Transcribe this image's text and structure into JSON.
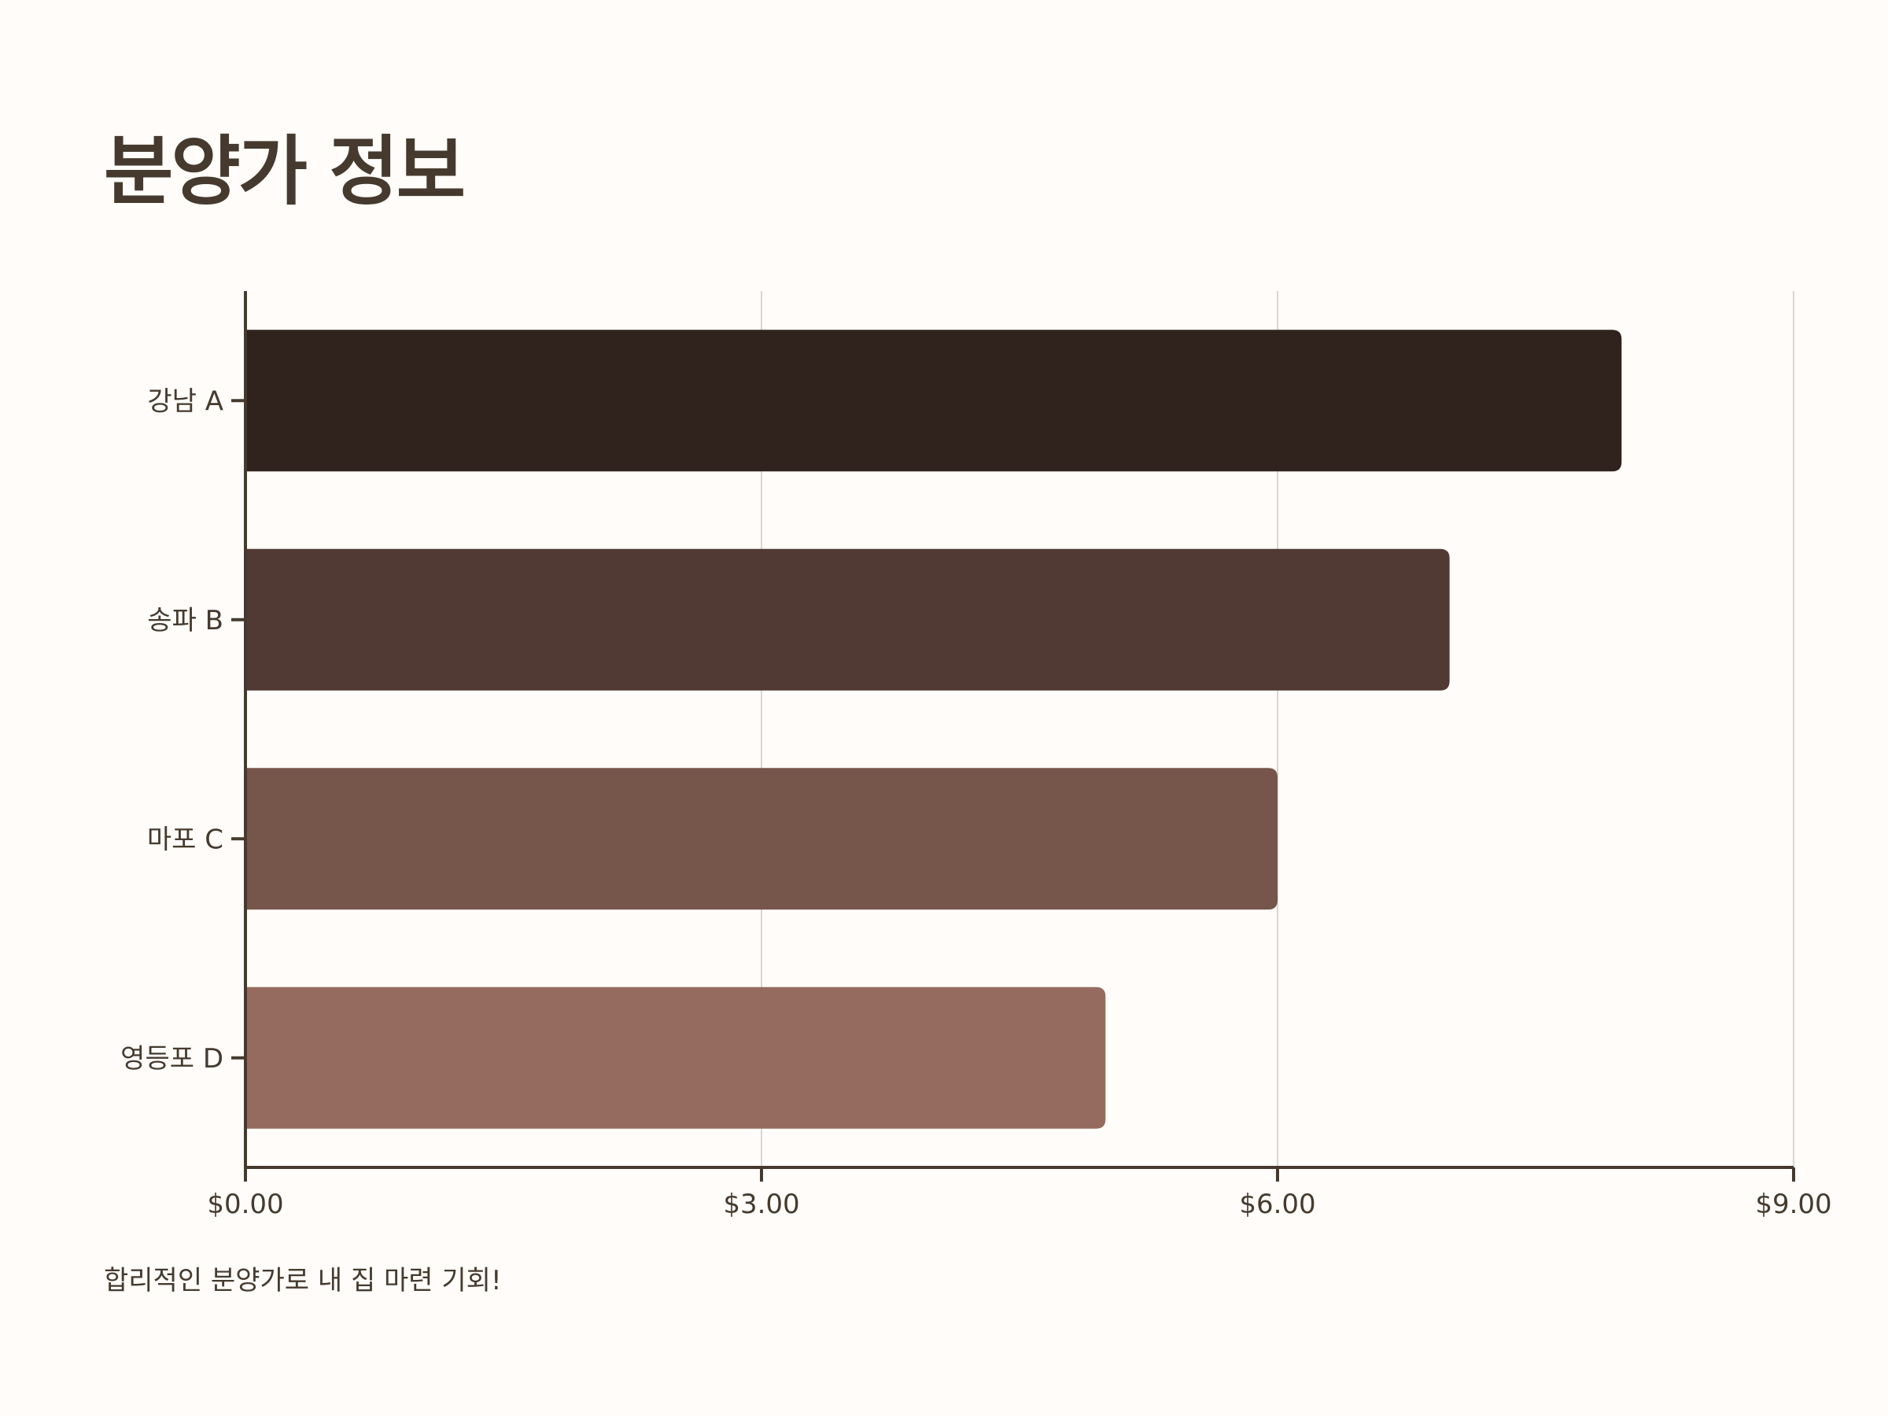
{
  "page": {
    "title": "분양가 정보",
    "footnote": "합리적인 분양가로 내 집 마련 기회!"
  },
  "colors": {
    "axis": "#463a2e",
    "grid": "#d9d5d2",
    "text": "#463a2e",
    "background": "#fffcf9"
  },
  "chart_data": {
    "type": "bar",
    "orientation": "horizontal",
    "categories": [
      "강남 A",
      "송파 B",
      "마포 C",
      "영등포 D"
    ],
    "values": [
      8,
      7,
      6,
      5
    ],
    "bar_colors": [
      "#30221d",
      "#523a34",
      "#76554b",
      "#966b5f"
    ],
    "xlim": [
      0,
      9
    ],
    "xticks": [
      0,
      3,
      6,
      9
    ],
    "xtick_labels": [
      "$0.00",
      "$3.00",
      "$6.00",
      "$9.00"
    ],
    "grid": "vertical",
    "legend": "none"
  }
}
